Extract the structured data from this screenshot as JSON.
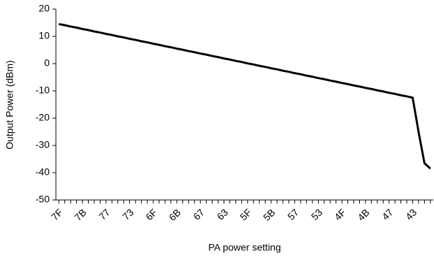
{
  "chart_data": {
    "type": "line",
    "x_label": "PA power setting",
    "y_label": "Output Power (dBm)",
    "categories": [
      "7F",
      null,
      null,
      null,
      "7B",
      null,
      null,
      null,
      "77",
      null,
      null,
      null,
      "73",
      null,
      null,
      null,
      "6F",
      null,
      null,
      null,
      "6B",
      null,
      null,
      null,
      "67",
      null,
      null,
      null,
      "63",
      null,
      null,
      null,
      "5F",
      null,
      null,
      null,
      "5B",
      null,
      null,
      null,
      "57",
      null,
      null,
      null,
      "53",
      null,
      null,
      null,
      "4F",
      null,
      null,
      null,
      "4B",
      null,
      null,
      null,
      "47",
      null,
      null,
      null,
      "43",
      null,
      null,
      null
    ],
    "series": [
      {
        "color": "#000000",
        "values": [
          14.5,
          14.1,
          13.6,
          13.2,
          12.7,
          12.3,
          11.8,
          11.4,
          10.9,
          10.5,
          10.0,
          9.6,
          9.1,
          8.7,
          8.2,
          7.8,
          7.3,
          6.9,
          6.4,
          6.0,
          5.5,
          5.1,
          4.6,
          4.2,
          3.7,
          3.3,
          2.8,
          2.4,
          1.9,
          1.5,
          1.0,
          0.6,
          0.1,
          -0.3,
          -0.8,
          -1.2,
          -1.7,
          -2.1,
          -2.6,
          -3.0,
          -3.5,
          -3.9,
          -4.4,
          -4.8,
          -5.3,
          -5.7,
          -6.2,
          -6.6,
          -7.1,
          -7.5,
          -8.0,
          -8.4,
          -8.9,
          -9.3,
          -9.8,
          -10.2,
          -10.7,
          -11.1,
          -11.6,
          -12.0,
          -12.5,
          -25,
          -36.5,
          -38.5
        ]
      }
    ],
    "ylim": [
      -50,
      20
    ],
    "yticks": [
      -50,
      -40,
      -30,
      -20,
      -10,
      0,
      10,
      20
    ],
    "grid": false
  }
}
